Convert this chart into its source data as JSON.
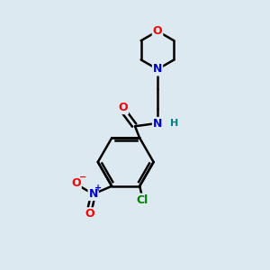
{
  "bg_color": "#dce9f0",
  "bond_color": "#000000",
  "atom_colors": {
    "O": "#ff0000",
    "N": "#0000cc",
    "Cl": "#008000",
    "H": "#008080",
    "C": "#000000"
  },
  "bond_width": 1.8,
  "figsize": [
    3.0,
    3.0
  ],
  "dpi": 100,
  "xlim": [
    0,
    10
  ],
  "ylim": [
    0,
    10
  ]
}
